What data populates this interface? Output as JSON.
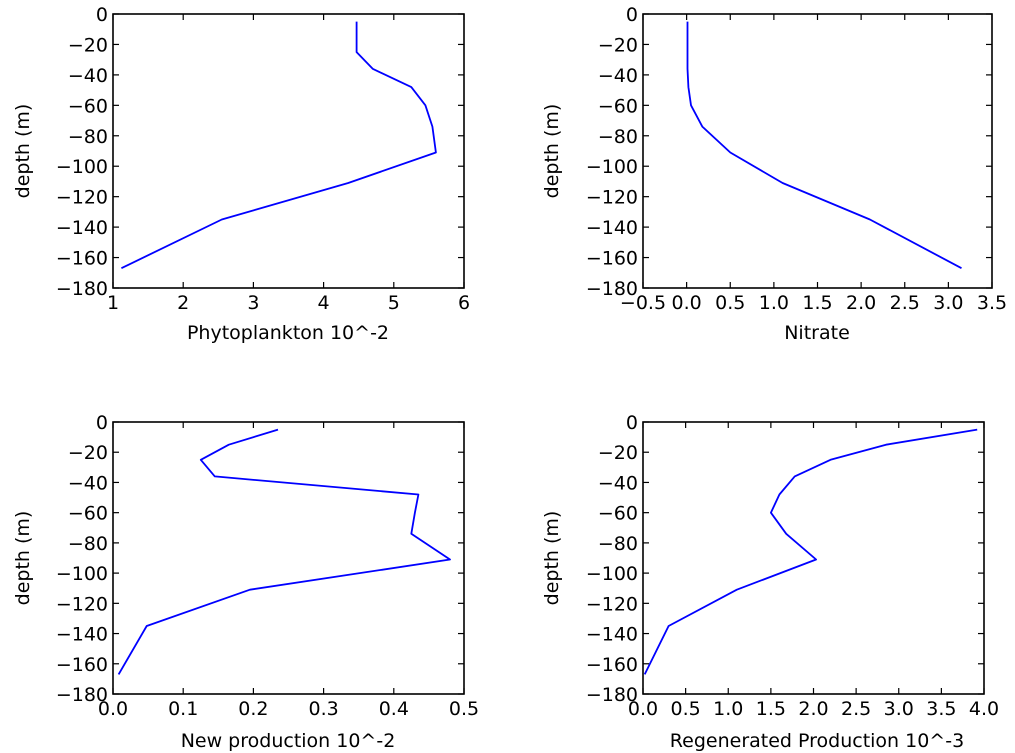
{
  "figure": {
    "line_color": "#0000ff"
  },
  "chart_data": [
    {
      "type": "line",
      "title": "",
      "xlabel": "Phytoplankton 10^-2",
      "ylabel": "depth (m)",
      "xlim": [
        1,
        6
      ],
      "ylim": [
        -180,
        0
      ],
      "xticks": [
        1,
        2,
        3,
        4,
        5,
        6
      ],
      "xtick_labels": [
        "1",
        "2",
        "3",
        "4",
        "5",
        "6"
      ],
      "yticks": [
        0,
        -20,
        -40,
        -60,
        -80,
        -100,
        -120,
        -140,
        -160,
        -180
      ],
      "ytick_labels": [
        "0",
        "−20",
        "−40",
        "−60",
        "−80",
        "−100",
        "−120",
        "−140",
        "−160",
        "−180"
      ],
      "series": [
        {
          "x": [
            4.47,
            4.47,
            4.47,
            4.7,
            5.25,
            5.45,
            5.55,
            5.6,
            4.35,
            2.55,
            1.12
          ],
          "y": [
            -5,
            -15,
            -25,
            -36,
            -48,
            -60,
            -74,
            -91,
            -111,
            -135,
            -167
          ]
        }
      ]
    },
    {
      "type": "line",
      "title": "",
      "xlabel": "Nitrate",
      "ylabel": "depth (m)",
      "xlim": [
        -0.5,
        3.5
      ],
      "ylim": [
        -180,
        0
      ],
      "xticks": [
        -0.5,
        0.0,
        0.5,
        1.0,
        1.5,
        2.0,
        2.5,
        3.0,
        3.5
      ],
      "xtick_labels": [
        "−0.5",
        "0.0",
        "0.5",
        "1.0",
        "1.5",
        "2.0",
        "2.5",
        "3.0",
        "3.5"
      ],
      "yticks": [
        0,
        -20,
        -40,
        -60,
        -80,
        -100,
        -120,
        -140,
        -160,
        -180
      ],
      "ytick_labels": [
        "0",
        "−20",
        "−40",
        "−60",
        "−80",
        "−100",
        "−120",
        "−140",
        "−160",
        "−180"
      ],
      "series": [
        {
          "x": [
            0.01,
            0.01,
            0.01,
            0.01,
            0.02,
            0.05,
            0.18,
            0.5,
            1.1,
            2.1,
            3.15
          ],
          "y": [
            -5,
            -15,
            -25,
            -36,
            -48,
            -60,
            -74,
            -91,
            -111,
            -135,
            -167
          ]
        }
      ]
    },
    {
      "type": "line",
      "title": "",
      "xlabel": "New production 10^-2",
      "ylabel": "depth (m)",
      "xlim": [
        0.0,
        0.5
      ],
      "ylim": [
        -180,
        0
      ],
      "xticks": [
        0.0,
        0.1,
        0.2,
        0.3,
        0.4,
        0.5
      ],
      "xtick_labels": [
        "0.0",
        "0.1",
        "0.2",
        "0.3",
        "0.4",
        "0.5"
      ],
      "yticks": [
        0,
        -20,
        -40,
        -60,
        -80,
        -100,
        -120,
        -140,
        -160,
        -180
      ],
      "ytick_labels": [
        "0",
        "−20",
        "−40",
        "−60",
        "−80",
        "−100",
        "−120",
        "−140",
        "−160",
        "−180"
      ],
      "series": [
        {
          "x": [
            0.235,
            0.165,
            0.125,
            0.145,
            0.435,
            0.43,
            0.425,
            0.48,
            0.195,
            0.048,
            0.008
          ],
          "y": [
            -5,
            -15,
            -25,
            -36,
            -48,
            -60,
            -74,
            -91,
            -111,
            -135,
            -167
          ]
        }
      ]
    },
    {
      "type": "line",
      "title": "",
      "xlabel": "Regenerated Production 10^-3",
      "ylabel": "depth (m)",
      "xlim": [
        0.0,
        4.0
      ],
      "ylim": [
        -180,
        0
      ],
      "xticks": [
        0.0,
        0.5,
        1.0,
        1.5,
        2.0,
        2.5,
        3.0,
        3.5,
        4.0
      ],
      "xtick_labels": [
        "0.0",
        "0.5",
        "1.0",
        "1.5",
        "2.0",
        "2.5",
        "3.0",
        "3.5",
        "4.0"
      ],
      "yticks": [
        0,
        -20,
        -40,
        -60,
        -80,
        -100,
        -120,
        -140,
        -160,
        -180
      ],
      "ytick_labels": [
        "0",
        "−20",
        "−40",
        "−60",
        "−80",
        "−100",
        "−120",
        "−140",
        "−160",
        "−180"
      ],
      "series": [
        {
          "x": [
            3.92,
            2.85,
            2.2,
            1.78,
            1.6,
            1.5,
            1.68,
            2.03,
            1.1,
            0.3,
            0.02
          ],
          "y": [
            -5,
            -15,
            -25,
            -36,
            -48,
            -60,
            -74,
            -91,
            -111,
            -135,
            -167
          ]
        }
      ]
    }
  ]
}
